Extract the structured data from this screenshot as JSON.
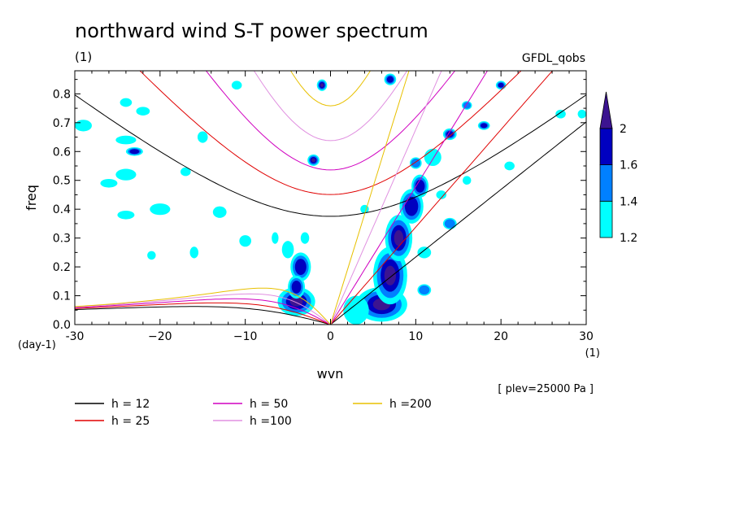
{
  "chart_data": {
    "type": "heatmap",
    "title": "northward wind S-T power spectrum",
    "units_label": "(1)",
    "source_label": "GFDL_qobs",
    "xlabel": "wvn",
    "ylabel": "freq",
    "x_units": "(1)",
    "y_units": "(day-1)",
    "annotation": "[ plev=25000 Pa ]",
    "xlim": [
      -30,
      30
    ],
    "ylim": [
      0,
      0.88
    ],
    "x_ticks": [
      -30,
      -20,
      -10,
      0,
      10,
      20,
      30
    ],
    "x_tick_labels": [
      "-30",
      "−20",
      "−10",
      "0",
      "10",
      "20",
      "30"
    ],
    "y_ticks": [
      0,
      0.1,
      0.2,
      0.3,
      0.4,
      0.5,
      0.6,
      0.7,
      0.8
    ],
    "y_tick_labels": [
      "0.0",
      "0.1",
      "0.2",
      "0.3",
      "0.4",
      "0.5",
      "0.6",
      "0.7",
      "0.8"
    ],
    "colorbar": {
      "levels": [
        1.2,
        1.4,
        1.6,
        2
      ],
      "labels": [
        "1.2",
        "1.4",
        "1.6",
        "2"
      ],
      "colors": [
        "#00ffff",
        "#0080ff",
        "#0000c0",
        "#3c1490"
      ]
    },
    "dispersion_curves": [
      {
        "name": "h = 12",
        "h": 12,
        "color": "#000000"
      },
      {
        "name": "h = 25",
        "h": 25,
        "color": "#e00000"
      },
      {
        "name": "h = 50",
        "h": 50,
        "color": "#d000c0"
      },
      {
        "name": "h =100",
        "h": 100,
        "color": "#e090e0"
      },
      {
        "name": "h =200",
        "h": 200,
        "color": "#e8c000"
      }
    ],
    "spectral_blobs": [
      {
        "x": 6,
        "y": 0.07,
        "rx": 3.0,
        "ry": 0.06,
        "level": 2
      },
      {
        "x": 7,
        "y": 0.17,
        "rx": 2.0,
        "ry": 0.1,
        "level": 2
      },
      {
        "x": 8,
        "y": 0.3,
        "rx": 1.6,
        "ry": 0.08,
        "level": 2
      },
      {
        "x": 9.5,
        "y": 0.41,
        "rx": 1.4,
        "ry": 0.06,
        "level": 1.6
      },
      {
        "x": 10.5,
        "y": 0.48,
        "rx": 1.0,
        "ry": 0.04,
        "level": 1.6
      },
      {
        "x": -4,
        "y": 0.08,
        "rx": 2.2,
        "ry": 0.05,
        "level": 2
      },
      {
        "x": -3.5,
        "y": 0.2,
        "rx": 1.2,
        "ry": 0.05,
        "level": 1.6
      },
      {
        "x": -4,
        "y": 0.13,
        "rx": 1.0,
        "ry": 0.04,
        "level": 1.6
      },
      {
        "x": -2,
        "y": 0.57,
        "rx": 0.7,
        "ry": 0.02,
        "level": 2
      },
      {
        "x": -1,
        "y": 0.83,
        "rx": 0.6,
        "ry": 0.02,
        "level": 2
      },
      {
        "x": 7,
        "y": 0.85,
        "rx": 0.7,
        "ry": 0.02,
        "level": 1.6
      },
      {
        "x": -23,
        "y": 0.6,
        "rx": 1.0,
        "ry": 0.015,
        "level": 1.6
      },
      {
        "x": 14,
        "y": 0.66,
        "rx": 0.8,
        "ry": 0.02,
        "level": 1.6
      },
      {
        "x": 18,
        "y": 0.69,
        "rx": 0.7,
        "ry": 0.015,
        "level": 1.6
      },
      {
        "x": 20,
        "y": 0.83,
        "rx": 0.6,
        "ry": 0.015,
        "level": 1.6
      },
      {
        "x": 16,
        "y": 0.76,
        "rx": 0.6,
        "ry": 0.015,
        "level": 1.4
      },
      {
        "x": 14,
        "y": 0.35,
        "rx": 0.8,
        "ry": 0.02,
        "level": 1.4
      },
      {
        "x": 11,
        "y": 0.12,
        "rx": 0.8,
        "ry": 0.02,
        "level": 1.4
      },
      {
        "x": -24,
        "y": 0.52,
        "rx": 1.2,
        "ry": 0.02,
        "level": 1.2
      },
      {
        "x": -26,
        "y": 0.49,
        "rx": 1.0,
        "ry": 0.015,
        "level": 1.2
      },
      {
        "x": -20,
        "y": 0.4,
        "rx": 1.2,
        "ry": 0.02,
        "level": 1.2
      },
      {
        "x": -24,
        "y": 0.38,
        "rx": 1.0,
        "ry": 0.015,
        "level": 1.2
      },
      {
        "x": -17,
        "y": 0.53,
        "rx": 0.6,
        "ry": 0.015,
        "level": 1.2
      },
      {
        "x": -13,
        "y": 0.39,
        "rx": 0.8,
        "ry": 0.02,
        "level": 1.2
      },
      {
        "x": -10,
        "y": 0.29,
        "rx": 0.7,
        "ry": 0.02,
        "level": 1.2
      },
      {
        "x": -22,
        "y": 0.74,
        "rx": 0.8,
        "ry": 0.015,
        "level": 1.2
      },
      {
        "x": -24,
        "y": 0.77,
        "rx": 0.7,
        "ry": 0.015,
        "level": 1.2
      },
      {
        "x": -29,
        "y": 0.69,
        "rx": 1.0,
        "ry": 0.02,
        "level": 1.2
      },
      {
        "x": -24,
        "y": 0.64,
        "rx": 1.2,
        "ry": 0.015,
        "level": 1.2
      },
      {
        "x": -16,
        "y": 0.25,
        "rx": 0.5,
        "ry": 0.02,
        "level": 1.2
      },
      {
        "x": -15,
        "y": 0.65,
        "rx": 0.6,
        "ry": 0.02,
        "level": 1.2
      },
      {
        "x": -11,
        "y": 0.83,
        "rx": 0.6,
        "ry": 0.015,
        "level": 1.2
      },
      {
        "x": -5,
        "y": 0.26,
        "rx": 0.7,
        "ry": 0.03,
        "level": 1.2
      },
      {
        "x": -3,
        "y": 0.3,
        "rx": 0.5,
        "ry": 0.02,
        "level": 1.2
      },
      {
        "x": -6.5,
        "y": 0.3,
        "rx": 0.4,
        "ry": 0.02,
        "level": 1.2
      },
      {
        "x": 3,
        "y": 0.05,
        "rx": 1.5,
        "ry": 0.05,
        "level": 1.2
      },
      {
        "x": 12,
        "y": 0.58,
        "rx": 1.0,
        "ry": 0.03,
        "level": 1.2
      },
      {
        "x": 11,
        "y": 0.25,
        "rx": 0.8,
        "ry": 0.02,
        "level": 1.2
      },
      {
        "x": 13,
        "y": 0.45,
        "rx": 0.6,
        "ry": 0.015,
        "level": 1.2
      },
      {
        "x": 21,
        "y": 0.55,
        "rx": 0.6,
        "ry": 0.015,
        "level": 1.2
      },
      {
        "x": 27,
        "y": 0.73,
        "rx": 0.6,
        "ry": 0.015,
        "level": 1.2
      },
      {
        "x": 29.5,
        "y": 0.73,
        "rx": 0.5,
        "ry": 0.015,
        "level": 1.2
      },
      {
        "x": 16,
        "y": 0.5,
        "rx": 0.5,
        "ry": 0.015,
        "level": 1.2
      },
      {
        "x": 10,
        "y": 0.56,
        "rx": 0.7,
        "ry": 0.02,
        "level": 1.4
      },
      {
        "x": -21,
        "y": 0.24,
        "rx": 0.5,
        "ry": 0.015,
        "level": 1.2
      },
      {
        "x": 4,
        "y": 0.4,
        "rx": 0.5,
        "ry": 0.015,
        "level": 1.2
      }
    ]
  }
}
